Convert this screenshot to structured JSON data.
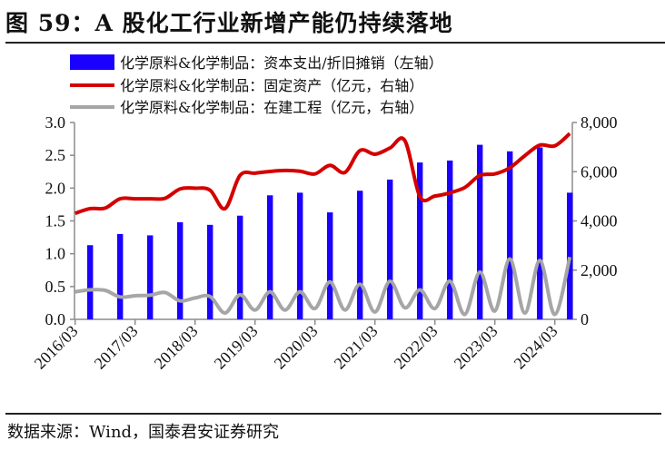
{
  "title": "图 59：A 股化工行业新增产能仍持续落地",
  "source": "数据来源：Wind，国泰君安证券研究",
  "chart_data": {
    "type": "bar+line",
    "legend_position": "top",
    "x_ticks": [
      "2016/03",
      "2017/03",
      "2018/03",
      "2019/03",
      "2020/03",
      "2021/03",
      "2022/03",
      "2023/03",
      "2024/03"
    ],
    "quarters": [
      "2016/03",
      "2016/06",
      "2016/09",
      "2016/12",
      "2017/03",
      "2017/06",
      "2017/09",
      "2017/12",
      "2018/03",
      "2018/06",
      "2018/09",
      "2018/12",
      "2019/03",
      "2019/06",
      "2019/09",
      "2019/12",
      "2020/03",
      "2020/06",
      "2020/09",
      "2020/12",
      "2021/03",
      "2021/06",
      "2021/09",
      "2021/12",
      "2022/03",
      "2022/06",
      "2022/09",
      "2022/12",
      "2023/03",
      "2023/06",
      "2023/09",
      "2023/12",
      "2024/03",
      "2024/06"
    ],
    "left_axis": {
      "ylim": [
        0,
        3.0
      ],
      "ticks": [
        "0.0",
        "0.5",
        "1.0",
        "1.5",
        "2.0",
        "2.5",
        "3.0"
      ]
    },
    "right_axis": {
      "ylim": [
        0,
        8000
      ],
      "ticks": [
        "0",
        "2,000",
        "4,000",
        "6,000",
        "8,000"
      ]
    },
    "series": [
      {
        "name": "化学原料&化学制品：资本支出/折旧摊销（左轴）",
        "type": "bar",
        "axis": "left",
        "color": "#1a00ff",
        "x": [
          "2016/06",
          "2016/12",
          "2017/06",
          "2017/12",
          "2018/06",
          "2018/12",
          "2019/06",
          "2019/12",
          "2020/06",
          "2020/12",
          "2021/06",
          "2021/12",
          "2022/06",
          "2022/12",
          "2023/06",
          "2023/12",
          "2024/06"
        ],
        "values": [
          1.13,
          1.3,
          1.28,
          1.48,
          1.44,
          1.58,
          1.89,
          1.93,
          1.63,
          1.96,
          2.13,
          2.39,
          2.42,
          2.66,
          2.56,
          2.62,
          1.93
        ]
      },
      {
        "name": "化学原料&化学制品：固定资产（亿元，右轴）",
        "type": "line",
        "axis": "right",
        "color": "#d40000",
        "values": [
          4310,
          4500,
          4520,
          4900,
          4900,
          4900,
          4920,
          5300,
          5330,
          5250,
          4500,
          5850,
          5940,
          6010,
          6050,
          6020,
          5910,
          6260,
          5970,
          6860,
          6710,
          6960,
          7260,
          4990,
          5010,
          5140,
          5360,
          5850,
          5910,
          6160,
          6650,
          7080,
          7050,
          7550
        ]
      },
      {
        "name": "化学原料&化学制品：在建工程（亿元，右轴）",
        "type": "line",
        "axis": "right",
        "color": "#a6a6a6",
        "values": [
          1120,
          1200,
          1180,
          910,
          960,
          980,
          1090,
          750,
          870,
          930,
          260,
          1000,
          380,
          1120,
          380,
          1120,
          440,
          1520,
          380,
          1430,
          300,
          1550,
          470,
          1200,
          440,
          1550,
          200,
          1920,
          340,
          2450,
          260,
          2390,
          200,
          2530
        ]
      }
    ]
  }
}
